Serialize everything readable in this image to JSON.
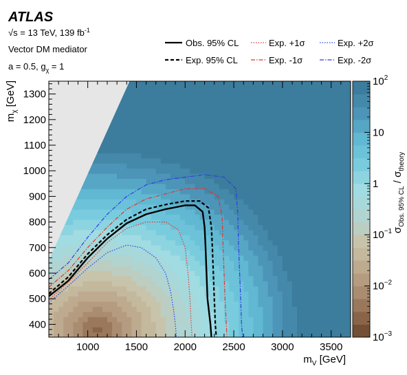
{
  "chart_data": {
    "type": "heatmap",
    "experiment": "ATLAS",
    "energy_text": "√s = 13 TeV, 139 fb",
    "energy_superscript": "-1",
    "model_line": "Vector DM mediator",
    "coupling_a": "a = 0.5, g",
    "coupling_sub": "χ",
    "coupling_val": " = 1",
    "xlabel": "m",
    "xlabel_sub": "V",
    "xlabel_unit": " [GeV]",
    "ylabel": "m",
    "ylabel_sub": "χ",
    "ylabel_unit": " [GeV]",
    "zlabel_main": "σ",
    "zlabel_sub1": "Obs. 95% CL",
    "zlabel_sep": " / σ",
    "zlabel_sub2": "theory",
    "xlim": [
      600,
      3700
    ],
    "ylim": [
      350,
      1350
    ],
    "zlim": [
      0.001,
      100
    ],
    "zscale": "log",
    "x_ticks": [
      1000,
      1500,
      2000,
      2500,
      3000,
      3500
    ],
    "x_tick_labels": [
      "1000",
      "1500",
      "2000",
      "2500",
      "3000",
      "3500"
    ],
    "y_ticks": [
      400,
      500,
      600,
      700,
      800,
      900,
      1000,
      1100,
      1200,
      1300
    ],
    "y_tick_labels": [
      "400",
      "500",
      "600",
      "700",
      "800",
      "900",
      "1000",
      "1100",
      "1200",
      "1300"
    ],
    "z_ticks": [
      {
        "base": "10",
        "exp": "−3",
        "value": 0.001
      },
      {
        "base": "10",
        "exp": "−2",
        "value": 0.01
      },
      {
        "base": "10",
        "exp": "−1",
        "value": 0.1
      },
      {
        "base": "1",
        "exp": "",
        "value": 1
      },
      {
        "base": "10",
        "exp": "",
        "value": 10
      },
      {
        "base": "10",
        "exp": "2",
        "value": 100
      }
    ],
    "excluded_region": {
      "description_color": "#e6e6e6",
      "points": [
        [
          600,
          350
        ],
        [
          600,
          650
        ],
        [
          1430,
          1350
        ],
        [
          600,
          1350
        ]
      ]
    },
    "legend": [
      {
        "label": "Obs. 95% CL",
        "style": "solid",
        "color": "#000000"
      },
      {
        "label": "Exp. +1σ",
        "style": "dotted",
        "color": "#e8322a"
      },
      {
        "label": "Exp. +2σ",
        "style": "dotted",
        "color": "#2a3ee8"
      },
      {
        "label": "Exp. 95% CL",
        "style": "dashed",
        "color": "#000000"
      },
      {
        "label": "Exp. -1σ",
        "style": "dashdot",
        "color": "#e8322a"
      },
      {
        "label": "Exp. -2σ",
        "style": "dashdot",
        "color": "#2a3ee8"
      }
    ],
    "contours": {
      "exp_plus2": [
        [
          600,
          485
        ],
        [
          800,
          550
        ],
        [
          1000,
          620
        ],
        [
          1200,
          680
        ],
        [
          1400,
          710
        ],
        [
          1550,
          700
        ],
        [
          1700,
          660
        ],
        [
          1800,
          600
        ],
        [
          1850,
          530
        ],
        [
          1880,
          460
        ],
        [
          1900,
          400
        ],
        [
          1910,
          350
        ]
      ],
      "exp_plus1": [
        [
          600,
          495
        ],
        [
          800,
          565
        ],
        [
          1000,
          640
        ],
        [
          1200,
          720
        ],
        [
          1400,
          775
        ],
        [
          1600,
          800
        ],
        [
          1800,
          800
        ],
        [
          1930,
          770
        ],
        [
          2000,
          700
        ],
        [
          2030,
          600
        ],
        [
          2050,
          500
        ],
        [
          2060,
          420
        ],
        [
          2070,
          350
        ]
      ],
      "obs": [
        [
          600,
          510
        ],
        [
          800,
          570
        ],
        [
          1000,
          660
        ],
        [
          1200,
          735
        ],
        [
          1400,
          795
        ],
        [
          1600,
          830
        ],
        [
          1800,
          850
        ],
        [
          2000,
          865
        ],
        [
          2100,
          865
        ],
        [
          2180,
          840
        ],
        [
          2200,
          780
        ],
        [
          2210,
          700
        ],
        [
          2220,
          600
        ],
        [
          2230,
          500
        ],
        [
          2260,
          400
        ],
        [
          2270,
          350
        ]
      ],
      "exp": [
        [
          600,
          520
        ],
        [
          800,
          585
        ],
        [
          1000,
          675
        ],
        [
          1200,
          750
        ],
        [
          1400,
          810
        ],
        [
          1600,
          850
        ],
        [
          1800,
          868
        ],
        [
          2000,
          882
        ],
        [
          2150,
          882
        ],
        [
          2240,
          855
        ],
        [
          2270,
          780
        ],
        [
          2280,
          700
        ],
        [
          2290,
          600
        ],
        [
          2300,
          500
        ],
        [
          2310,
          400
        ],
        [
          2320,
          350
        ]
      ],
      "exp_minus1": [
        [
          600,
          545
        ],
        [
          800,
          610
        ],
        [
          1000,
          700
        ],
        [
          1200,
          780
        ],
        [
          1400,
          850
        ],
        [
          1600,
          890
        ],
        [
          1800,
          910
        ],
        [
          2000,
          930
        ],
        [
          2200,
          930
        ],
        [
          2340,
          900
        ],
        [
          2380,
          820
        ],
        [
          2390,
          700
        ],
        [
          2400,
          600
        ],
        [
          2410,
          500
        ],
        [
          2420,
          420
        ],
        [
          2430,
          350
        ]
      ],
      "exp_minus2": [
        [
          600,
          575
        ],
        [
          800,
          640
        ],
        [
          1000,
          740
        ],
        [
          1200,
          830
        ],
        [
          1400,
          900
        ],
        [
          1600,
          945
        ],
        [
          1800,
          965
        ],
        [
          2000,
          975
        ],
        [
          2200,
          985
        ],
        [
          2400,
          975
        ],
        [
          2520,
          930
        ],
        [
          2540,
          840
        ],
        [
          2550,
          700
        ],
        [
          2560,
          600
        ],
        [
          2570,
          500
        ],
        [
          2580,
          400
        ],
        [
          2590,
          350
        ]
      ]
    },
    "heat_field": {
      "description": "log10(sigma_obs/sigma_theory): minimum ~-2.6 near (1100,380); rises with distance, ~2 at top edge",
      "center_x": 1100,
      "center_y": 380,
      "min_log": -2.6
    }
  }
}
